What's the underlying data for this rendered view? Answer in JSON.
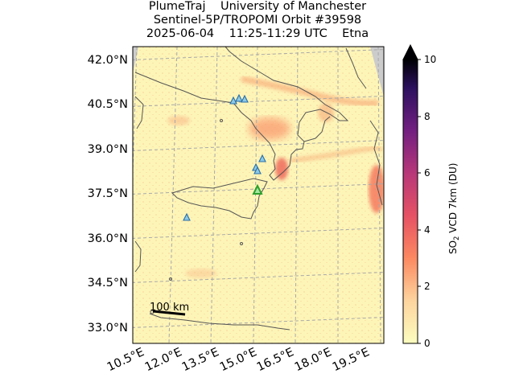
{
  "title": {
    "line1": "PlumeTraj    University of Manchester",
    "line2": "Sentinel-5P/TROPOMI Orbit #39598",
    "line3": "2025-06-04    11:25-11:29 UTC    Etna"
  },
  "map": {
    "lat_labels": [
      "42.0°N",
      "40.5°N",
      "39.0°N",
      "37.5°N",
      "36.0°N",
      "34.5°N",
      "33.0°N"
    ],
    "lon_labels": [
      "10.5°E",
      "12.0°E",
      "13.5°E",
      "15.0°E",
      "16.5°E",
      "18.0°E",
      "19.5°E"
    ],
    "scale_bar_label": "100 km",
    "land_color": "#fdf5b8",
    "nodata_color": "#cccccc",
    "grid_color": "#a8a8a8",
    "coastline_color": "#555555",
    "volcano_marker_color": "#2a8fd0",
    "target_volcano_color": "#2ca02c",
    "target_volcano": "Etna",
    "volcano_markers": [
      {
        "lon": 13.1,
        "lat": 40.6
      },
      {
        "lon": 13.3,
        "lat": 40.7
      },
      {
        "lon": 13.5,
        "lat": 40.7
      },
      {
        "lon": 14.9,
        "lat": 38.4
      },
      {
        "lon": 15.0,
        "lat": 38.3
      },
      {
        "lon": 15.2,
        "lat": 38.7
      },
      {
        "lon": 12.1,
        "lat": 36.7
      }
    ],
    "target_marker": {
      "lon": 15.0,
      "lat": 37.7
    }
  },
  "colorbar": {
    "label_prefix": "SO",
    "label_sub": "2",
    "label_suffix": " VCD 7km (DU)",
    "ticks": [
      "0",
      "2",
      "4",
      "6",
      "8",
      "10"
    ],
    "min": 0,
    "max": 10,
    "extend": "max",
    "colormap": "magma_r"
  }
}
